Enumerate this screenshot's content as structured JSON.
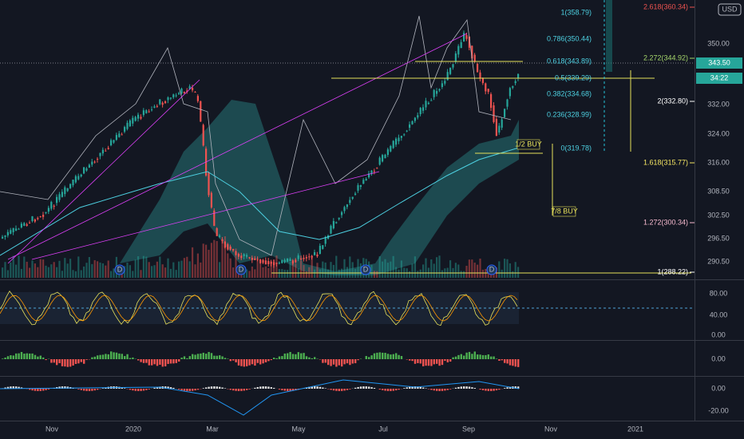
{
  "price_axis": {
    "ticks": [
      "350.00",
      "332.00",
      "324.00",
      "316.00",
      "308.50",
      "302.50",
      "296.50",
      "290.50"
    ],
    "last_price": "343.50",
    "countdown": "34:22",
    "currency": "USD"
  },
  "fib_retracement": [
    "1(358.79)",
    "0.786(350.44)",
    "0.618(343.89)",
    "0.5(339.29)",
    "0.382(334.68)",
    "0.236(328.99)",
    "0(319.78)"
  ],
  "fib_extension": [
    "2.618(360.34)",
    "2.272(344.92)",
    "2(332.80)",
    "1.618(315.77)",
    "1.272(300.34)",
    "1(288.22)"
  ],
  "annotations": [
    "1/2 BUY",
    "7/8 BUY"
  ],
  "dividend_markers": [
    "D",
    "D",
    "D",
    "D"
  ],
  "rsi_axis": [
    "80.00",
    "40.00",
    "0.00"
  ],
  "oscillator_axis": [
    "0.00"
  ],
  "macd_axis": [
    "0.00",
    "-20.00"
  ],
  "time_axis": [
    "Nov",
    "2020",
    "Mar",
    "May",
    "Jul",
    "Sep",
    "Nov",
    "2021"
  ]
}
